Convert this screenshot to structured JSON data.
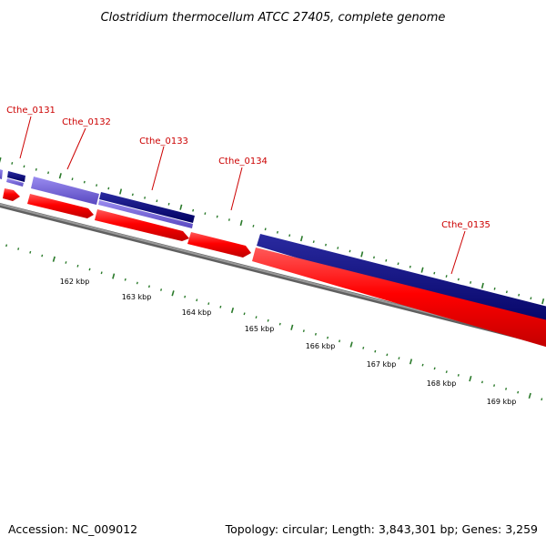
{
  "title": "Clostridium thermocellum ATCC 27405, complete genome",
  "footer": {
    "accession": "Accession: NC_009012",
    "summary": "Topology: circular; Length: 3,843,301 bp; Genes: 3,259"
  },
  "colors": {
    "forward_gene": "#ff0000",
    "reverse_gene": "#0a0a80",
    "reverse_gene_light": "#7060d8",
    "backbone": "#808080",
    "tick": "#2a7a2a",
    "label": "#cc0000"
  },
  "gene_labels": [
    "Cthe_0131",
    "Cthe_0132",
    "Cthe_0133",
    "Cthe_0134",
    "Cthe_0135"
  ],
  "kbp_labels": [
    "162 kbp",
    "163 kbp",
    "164 kbp",
    "165 kbp",
    "166 kbp",
    "167 kbp",
    "168 kbp",
    "169 kbp"
  ]
}
